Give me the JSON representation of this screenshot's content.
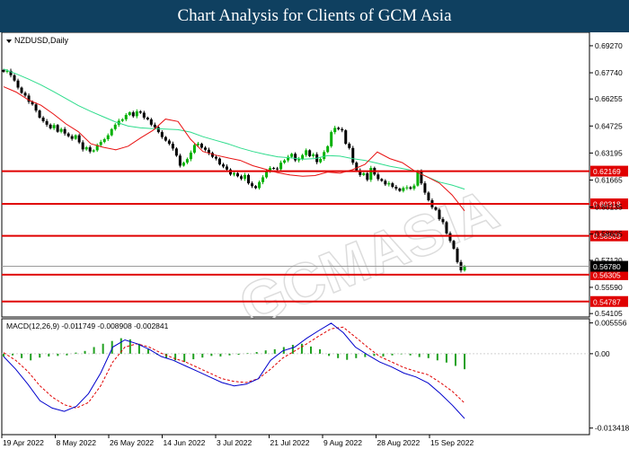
{
  "banner": {
    "title": "Chart Analysis for Clients of GCM Asia"
  },
  "watermark": "GCMASIA",
  "chart_data": {
    "type": "candlestick",
    "symbol_label": "NZDUSD,Daily",
    "colors": {
      "up": "#00b000",
      "down": "#000000",
      "ma_fast": "#e81010",
      "ma_slow": "#2edc8c",
      "level": "#e00000",
      "macd_hist": "#20a020",
      "macd_line": "#0000cc",
      "signal_line": "#e00000"
    },
    "price_axis": {
      "min": 0.5391,
      "max": 0.7003,
      "ticks": [
        "0.69270",
        "0.67740",
        "0.66255",
        "0.64725",
        "0.63195",
        "0.61665",
        "0.60135",
        "0.58605",
        "0.57120",
        "0.55590",
        "0.54105"
      ]
    },
    "current_price": {
      "value": 0.5678,
      "label": "0.56780"
    },
    "levels": [
      {
        "value": 0.62169,
        "label": "0.62169"
      },
      {
        "value": 0.60318,
        "label": "0.60318"
      },
      {
        "value": 0.58503,
        "label": "0.58503"
      },
      {
        "value": 0.56305,
        "label": "0.56305"
      },
      {
        "value": 0.54787,
        "label": "0.54787"
      }
    ],
    "x_labels": [
      "19 Apr 2022",
      "8 May 2022",
      "26 May 2022",
      "14 Jun 2022",
      "3 Jul 2022",
      "21 Jul 2022",
      "9 Aug 2022",
      "28 Aug 2022",
      "15 Sep 2022"
    ],
    "closes": [
      0.678,
      0.6785,
      0.676,
      0.673,
      0.669,
      0.666,
      0.6645,
      0.661,
      0.6595,
      0.656,
      0.652,
      0.65,
      0.648,
      0.646,
      0.6478,
      0.644,
      0.6455,
      0.643,
      0.6415,
      0.64,
      0.642,
      0.638,
      0.634,
      0.6352,
      0.6328,
      0.6335,
      0.6365,
      0.6382,
      0.6398,
      0.642,
      0.6455,
      0.648,
      0.6502,
      0.651,
      0.6535,
      0.655,
      0.6528,
      0.6555,
      0.6548,
      0.652,
      0.651,
      0.648,
      0.6465,
      0.6438,
      0.641,
      0.639,
      0.6372,
      0.6345,
      0.6305,
      0.6248,
      0.6265,
      0.6285,
      0.6322,
      0.6365,
      0.6372,
      0.635,
      0.6338,
      0.632,
      0.6298,
      0.6288,
      0.6255,
      0.6243,
      0.6226,
      0.6198,
      0.6205,
      0.6188,
      0.6174,
      0.6195,
      0.6148,
      0.6132,
      0.6121,
      0.6155,
      0.6182,
      0.6218,
      0.6235,
      0.6232,
      0.6228,
      0.6265,
      0.6278,
      0.6298,
      0.6315,
      0.6278,
      0.6285,
      0.6308,
      0.6335,
      0.6302,
      0.6312,
      0.6268,
      0.6286,
      0.6325,
      0.6358,
      0.6438,
      0.6462,
      0.6455,
      0.6448,
      0.6372,
      0.6348,
      0.6265,
      0.6222,
      0.6195,
      0.6205,
      0.6168,
      0.6235,
      0.6198,
      0.6172,
      0.6162,
      0.6142,
      0.6148,
      0.6128,
      0.6118,
      0.6105,
      0.6122,
      0.6125,
      0.6118,
      0.6135,
      0.6218,
      0.6148,
      0.6095,
      0.6052,
      0.6012,
      0.5998,
      0.5945,
      0.5928,
      0.5865,
      0.5822,
      0.5778,
      0.5702,
      0.5655,
      0.5678
    ],
    "ma_fast": [
      0.6695,
      0.6665,
      0.662,
      0.659,
      0.654,
      0.6485,
      0.644,
      0.6372,
      0.6352,
      0.6338,
      0.6358,
      0.6405,
      0.6448,
      0.6512,
      0.6498,
      0.6398,
      0.6328,
      0.6308,
      0.6292,
      0.6278,
      0.6248,
      0.6228,
      0.6208,
      0.6195,
      0.6188,
      0.6192,
      0.6212,
      0.6205,
      0.6225,
      0.6255,
      0.6325,
      0.6288,
      0.6265,
      0.6218,
      0.6185,
      0.6148,
      0.6082,
      0.5992
    ],
    "ma_slow": [
      0.6795,
      0.6768,
      0.6738,
      0.6705,
      0.6668,
      0.6628,
      0.6588,
      0.6555,
      0.6525,
      0.6495,
      0.6472,
      0.6462,
      0.6458,
      0.6455,
      0.6452,
      0.6438,
      0.6412,
      0.6392,
      0.6372,
      0.6348,
      0.6328,
      0.6312,
      0.6298,
      0.6292,
      0.6285,
      0.6288,
      0.6305,
      0.6302,
      0.6288,
      0.6278,
      0.6262,
      0.6245,
      0.6232,
      0.6218,
      0.6185,
      0.6155,
      0.6138,
      0.6115
    ],
    "macd": {
      "label": "MACD(12,26,9) -0.011749 -0.008908 -0.002841",
      "axis": {
        "min": -0.0146,
        "max": 0.0063,
        "ticks": [
          "0.005556",
          "0.00",
          "-0.013418"
        ]
      },
      "histogram": [
        -0.0005,
        -0.0003,
        -0.0008,
        -0.0012,
        -0.0007,
        -0.0005,
        -0.0004,
        -0.0003,
        0.0002,
        0.0005,
        0.0012,
        0.0018,
        0.0023,
        0.0028,
        0.0026,
        0.0018,
        0.0008,
        -0.0002,
        -0.0008,
        -0.0012,
        -0.0015,
        -0.001,
        -0.0007,
        -0.0004,
        -0.0005,
        -0.0003,
        -0.0002,
        0.0001,
        0.0003,
        0.0006,
        0.0008,
        0.0012,
        0.0016,
        0.0018,
        0.0013,
        0.0008,
        -0.0004,
        -0.0008,
        -0.0011,
        -0.0008,
        -0.0006,
        -0.0004,
        -0.0005,
        -0.0003,
        -0.0001,
        -0.0003,
        -0.0006,
        -0.0008,
        -0.0012,
        -0.0016,
        -0.0022,
        -0.0028
      ],
      "line": [
        -0.0005,
        -0.0028,
        -0.0055,
        -0.0085,
        -0.0098,
        -0.0104,
        -0.0095,
        -0.0072,
        -0.0035,
        0.0012,
        0.0025,
        0.0018,
        0.0008,
        -0.0005,
        -0.0012,
        -0.0022,
        -0.0032,
        -0.0042,
        -0.0052,
        -0.0058,
        -0.0055,
        -0.0045,
        -0.0012,
        0.0005,
        0.0012,
        0.0028,
        0.0042,
        0.0055,
        0.0038,
        0.0012,
        -0.0002,
        -0.0015,
        -0.0024,
        -0.0035,
        -0.0042,
        -0.0053,
        -0.0072,
        -0.0093,
        -0.0117
      ],
      "signal": [
        0.0002,
        -0.0012,
        -0.0032,
        -0.0058,
        -0.0078,
        -0.0092,
        -0.0098,
        -0.0088,
        -0.0058,
        -0.0015,
        0.0012,
        0.0018,
        0.0012,
        0.0001,
        -0.0008,
        -0.0015,
        -0.0025,
        -0.0035,
        -0.0045,
        -0.005,
        -0.0052,
        -0.0045,
        -0.0028,
        -0.0008,
        0.0005,
        0.0018,
        0.0032,
        0.0045,
        0.0048,
        0.003,
        0.0012,
        -0.0005,
        -0.0015,
        -0.0025,
        -0.0032,
        -0.0038,
        -0.0052,
        -0.0068,
        -0.0089
      ]
    }
  }
}
